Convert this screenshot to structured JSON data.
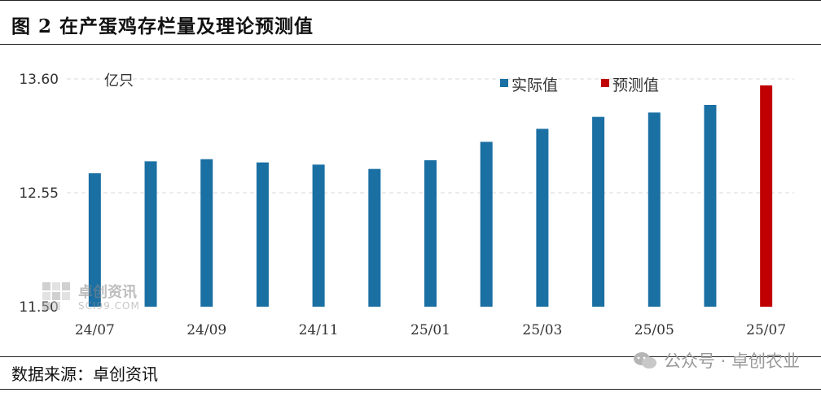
{
  "header": {
    "title": "图 2 在产蛋鸡存栏量及理论预测值"
  },
  "footer": {
    "source": "数据来源：卓创资讯",
    "credit": "公众号 · 卓创农业"
  },
  "watermark": {
    "name": "卓创资讯",
    "site": "SCI99.COM"
  },
  "colors": {
    "actual": "#1a6fa3",
    "forecast": "#c00000",
    "grid": "#d9d9d9"
  },
  "chart_data": {
    "type": "bar",
    "unit_label": "亿只",
    "categories": [
      "24/07",
      "24/08",
      "24/09",
      "24/10",
      "24/11",
      "24/12",
      "25/01",
      "25/02",
      "25/03",
      "25/04",
      "25/05",
      "25/06",
      "25/07"
    ],
    "x_tick_labels": [
      "24/07",
      "24/09",
      "24/11",
      "25/01",
      "25/03",
      "25/05",
      "25/07"
    ],
    "series": [
      {
        "name": "实际值",
        "values": [
          12.73,
          12.84,
          12.86,
          12.83,
          12.81,
          12.77,
          12.85,
          13.02,
          13.14,
          13.25,
          13.29,
          13.36,
          null
        ]
      },
      {
        "name": "预测值",
        "values": [
          null,
          null,
          null,
          null,
          null,
          null,
          null,
          null,
          null,
          null,
          null,
          null,
          13.54
        ]
      }
    ],
    "y_ticks": [
      "11.50",
      "12.55",
      "13.60"
    ],
    "ylim": [
      11.5,
      13.6
    ],
    "grid": true,
    "legend_position": "top-right"
  }
}
